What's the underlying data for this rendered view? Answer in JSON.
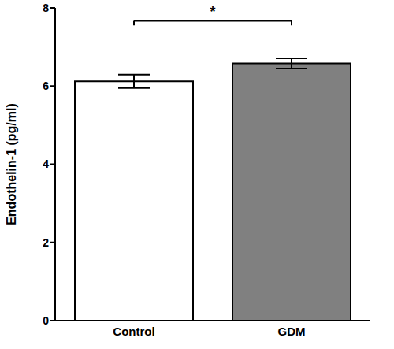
{
  "chart_data": {
    "type": "bar",
    "categories": [
      "Control",
      "GDM"
    ],
    "values": [
      6.12,
      6.58
    ],
    "errors": [
      0.17,
      0.13
    ],
    "colors": [
      "#ffffff",
      "#808080"
    ],
    "ylabel": "Endothelin-1 (pg/ml)",
    "ylim": [
      0,
      8
    ],
    "yticks": [
      0,
      2,
      4,
      6,
      8
    ],
    "annotation": "*",
    "grid": false
  }
}
